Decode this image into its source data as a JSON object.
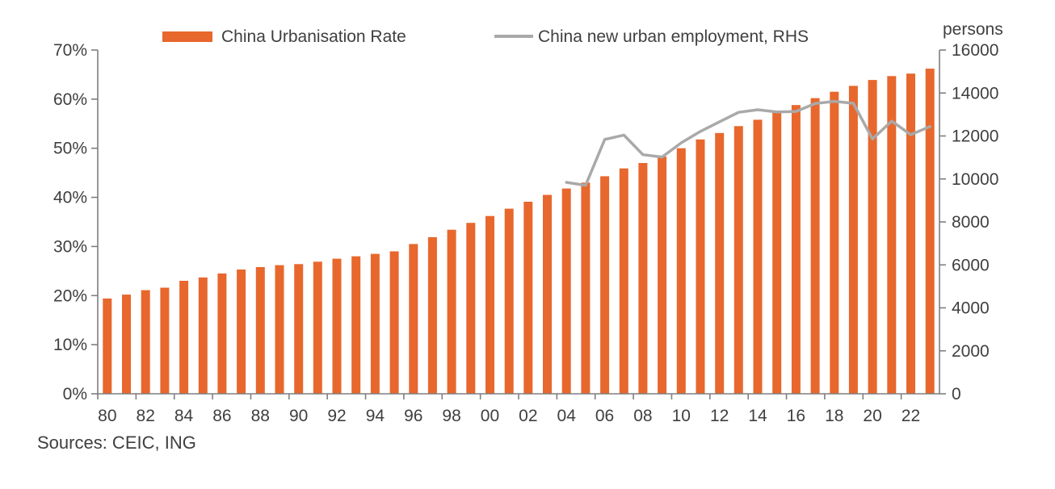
{
  "chart_data": {
    "type": "bar",
    "start_year": 1980,
    "legend_position": "top",
    "grid": false,
    "series": [
      {
        "name": "China Urbanisation Rate",
        "type": "bar",
        "axis": "left",
        "color": "#E8672D",
        "values": [
          19.4,
          20.2,
          21.1,
          21.6,
          23.0,
          23.7,
          24.5,
          25.3,
          25.8,
          26.2,
          26.4,
          26.9,
          27.5,
          28.0,
          28.5,
          29.0,
          30.5,
          31.9,
          33.4,
          34.8,
          36.2,
          37.7,
          39.1,
          40.5,
          41.8,
          43.0,
          44.3,
          45.9,
          47.0,
          48.3,
          50.0,
          51.8,
          53.1,
          54.5,
          55.8,
          57.3,
          58.8,
          60.2,
          61.5,
          62.7,
          63.9,
          64.7,
          65.2,
          66.2
        ]
      },
      {
        "name": "China new urban employment, RHS",
        "type": "line",
        "axis": "right",
        "color": "#A9A9A9",
        "start_year": 2004,
        "values": [
          9840,
          9700,
          11840,
          12040,
          11130,
          11020,
          11680,
          12210,
          12660,
          13100,
          13220,
          13120,
          13140,
          13510,
          13610,
          13520,
          11860,
          12690,
          12060,
          12440
        ]
      }
    ],
    "left_axis": {
      "min": 0,
      "max": 70,
      "step": 10,
      "suffix": "%",
      "tick_labels": [
        "0%",
        "10%",
        "20%",
        "30%",
        "40%",
        "50%",
        "60%",
        "70%"
      ]
    },
    "right_axis": {
      "min": 0,
      "max": 16000,
      "step": 2000,
      "label": "persons",
      "tick_labels": [
        "0",
        "2000",
        "4000",
        "6000",
        "8000",
        "10000",
        "12000",
        "14000",
        "16000"
      ]
    },
    "x_tick_labels": [
      "80",
      "82",
      "84",
      "86",
      "88",
      "90",
      "92",
      "94",
      "96",
      "98",
      "00",
      "02",
      "04",
      "06",
      "08",
      "10",
      "12",
      "14",
      "16",
      "18",
      "20",
      "22"
    ]
  },
  "footer": {
    "sources": "Sources: CEIC, ING"
  },
  "colors": {
    "axis_line": "#7f7f7f",
    "text": "#3f3f3f",
    "background": "#ffffff"
  }
}
